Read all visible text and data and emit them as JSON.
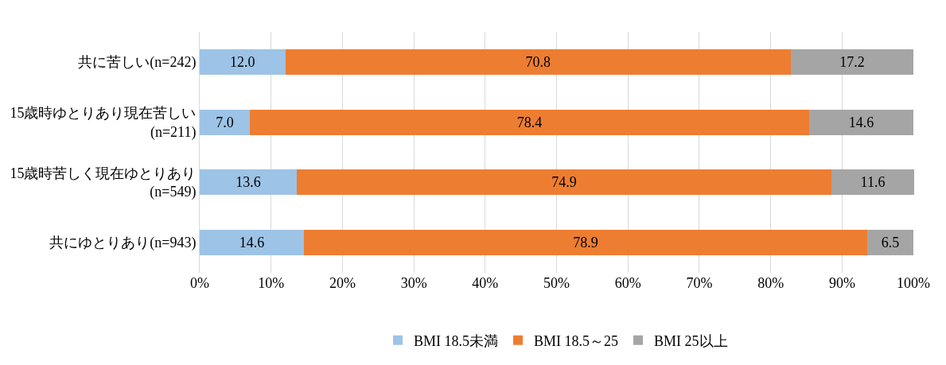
{
  "chart_data": {
    "type": "bar",
    "orientation": "horizontal",
    "stacked": true,
    "categories": [
      "共に苦しい(n=242)",
      "15歳時ゆとりあり現在苦しい\n(n=211)",
      "15歳時苦しく現在ゆとりあり\n(n=549)",
      "共にゆとりあり(n=943)"
    ],
    "series": [
      {
        "name": "BMI 18.5未満",
        "color": "#9dc3e6",
        "values": [
          12.0,
          7.0,
          13.6,
          14.6
        ],
        "value_labels": [
          "12.0",
          "7.0",
          "13.6",
          "14.6"
        ]
      },
      {
        "name": "BMI 18.5～25",
        "color": "#ed7d31",
        "values": [
          70.8,
          78.4,
          74.9,
          78.9
        ],
        "value_labels": [
          "70.8",
          "78.4",
          "74.9",
          "78.9"
        ]
      },
      {
        "name": "BMI 25以上",
        "color": "#a5a5a5",
        "values": [
          17.2,
          14.6,
          11.6,
          6.5
        ],
        "value_labels": [
          "17.2",
          "14.6",
          "11.6",
          "6.5"
        ]
      }
    ],
    "xlim": [
      0,
      100.1
    ],
    "xticks": [
      {
        "value": 0,
        "label": "0%"
      },
      {
        "value": 10,
        "label": "10%"
      },
      {
        "value": 20,
        "label": "20%"
      },
      {
        "value": 30,
        "label": "30%"
      },
      {
        "value": 40,
        "label": "40%"
      },
      {
        "value": 50,
        "label": "50%"
      },
      {
        "value": 60,
        "label": "60%"
      },
      {
        "value": 70,
        "label": "70%"
      },
      {
        "value": 80,
        "label": "80%"
      },
      {
        "value": 90,
        "label": "90%"
      },
      {
        "value": 100,
        "label": "100%"
      }
    ],
    "grid": "x",
    "legend": "bottom"
  }
}
